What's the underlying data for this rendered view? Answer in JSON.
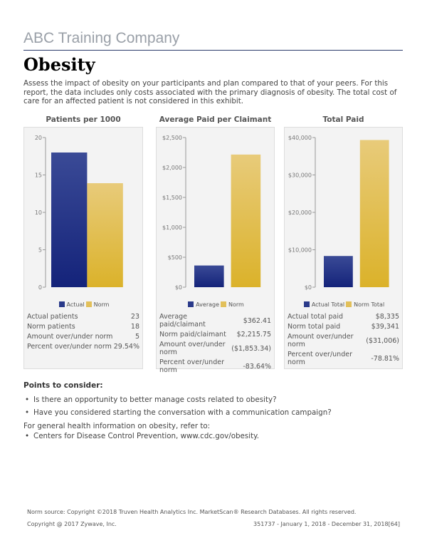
{
  "company": "ABC Training Company",
  "title": "Obesity",
  "intro": "Assess the impact of obesity on your participants and plan compared to that of your peers. For this report, the data includes only costs associated with the primary diagnosis of obesity. The total cost of care for an affected patient is not considered in this exhibit.",
  "colors": {
    "actual": "#2a3a8a",
    "norm": "#e2c05a"
  },
  "chart_data": [
    {
      "type": "bar",
      "title": "Patients per 1000",
      "categories": [
        "Actual",
        "Norm"
      ],
      "values": [
        18,
        13.9
      ],
      "ylim": [
        0,
        20
      ],
      "ticks": [
        0,
        5,
        10,
        15,
        20
      ],
      "tick_labels": [
        "0",
        "5",
        "10",
        "15",
        "20"
      ],
      "legend": [
        "Actual",
        "Norm"
      ]
    },
    {
      "type": "bar",
      "title": "Average Paid per Claimant",
      "categories": [
        "Average",
        "Norm"
      ],
      "values": [
        362.41,
        2215.75
      ],
      "ylim": [
        0,
        2500
      ],
      "ticks": [
        0,
        500,
        1000,
        1500,
        2000,
        2500
      ],
      "tick_labels": [
        "$0",
        "$500",
        "$1,000",
        "$1,500",
        "$2,000",
        "$2,500"
      ],
      "legend": [
        "Average",
        "Norm"
      ]
    },
    {
      "type": "bar",
      "title": "Total Paid",
      "categories": [
        "Actual Total",
        "Norm Total"
      ],
      "values": [
        8335,
        39341
      ],
      "ylim": [
        0,
        40000
      ],
      "ticks": [
        0,
        10000,
        20000,
        30000,
        40000
      ],
      "tick_labels": [
        "$0",
        "$10,000",
        "$20,000",
        "$30,000",
        "$40,000"
      ],
      "legend": [
        "Actual Total",
        "Norm Total"
      ]
    }
  ],
  "stats": [
    [
      [
        "Actual patients",
        "23"
      ],
      [
        "Norm patients",
        "18"
      ],
      [
        "Amount over/under norm",
        "5"
      ],
      [
        "Percent over/under norm",
        "29.54%"
      ]
    ],
    [
      [
        "Average paid/claimant",
        "$362.41"
      ],
      [
        "Norm paid/claimant",
        "$2,215.75"
      ],
      [
        "Amount over/under norm",
        "($1,853.34)"
      ],
      [
        "Percent over/under norm",
        "-83.64%"
      ]
    ],
    [
      [
        "Actual total paid",
        "$8,335"
      ],
      [
        "Norm total paid",
        "$39,341"
      ],
      [
        "Amount over/under norm",
        "($31,006)"
      ],
      [
        "Percent over/under norm",
        "-78.81%"
      ]
    ]
  ],
  "points_title": "Points to consider:",
  "points": [
    "Is there an opportunity to better manage costs related to obesity?",
    "Have you considered starting the conversation with a communication campaign?"
  ],
  "ref_intro": "For general health information on obesity, refer to:",
  "refs": [
    "Centers for Disease Control Prevention, www.cdc.gov/obesity."
  ],
  "footer": {
    "norm_source": "Norm source: Copyright ©2018 Truven Health Analytics Inc. MarketScan® Research Databases. All rights reserved.",
    "copyright": "Copyright @ 2017 Zywave, Inc.",
    "report_id": "351737 - January 1, 2018 - December 31, 2018[64]"
  }
}
